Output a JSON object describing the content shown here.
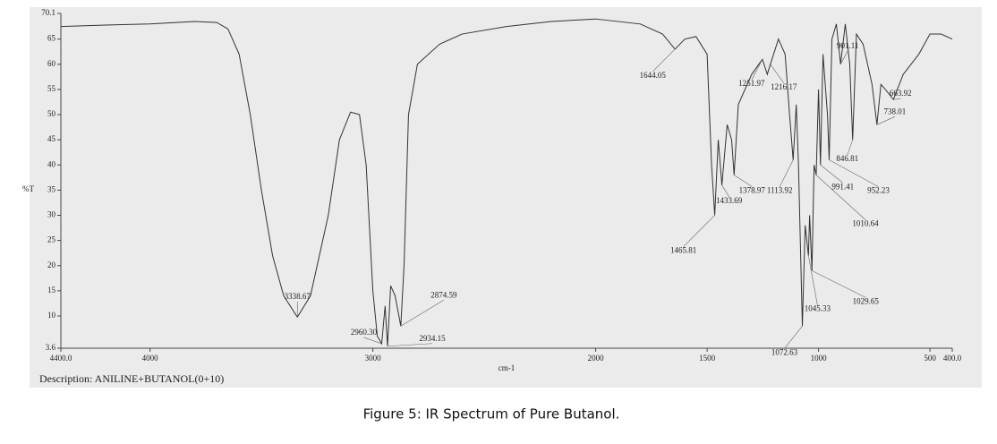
{
  "chart_data": {
    "type": "line",
    "y_label": "%T",
    "x_label": "cm-1",
    "description": "Description: ANILINE+BUTANOL(0+10)",
    "caption": "Figure 5: IR Spectrum of Pure Butanol.",
    "xlim": [
      4400,
      400
    ],
    "ylim": [
      3.6,
      70.1
    ],
    "xticks": [
      {
        "value": 4400,
        "label": "4400.0"
      },
      4000,
      3000,
      2000,
      1500,
      1000,
      500,
      {
        "value": 400,
        "label": "400.0"
      }
    ],
    "yticks": [
      3.6,
      10,
      15,
      20,
      25,
      30,
      35,
      40,
      45,
      50,
      55,
      60,
      65,
      70.1
    ],
    "x": [
      4400,
      4200,
      4000,
      3800,
      3700,
      3650,
      3600,
      3550,
      3500,
      3450,
      3400,
      3338.67,
      3280,
      3200,
      3150,
      3100,
      3060,
      3030,
      3000,
      2980,
      2960.3,
      2945,
      2934.15,
      2920,
      2900,
      2874.59,
      2860,
      2840,
      2800,
      2700,
      2600,
      2400,
      2200,
      2000,
      1800,
      1700,
      1644.05,
      1600,
      1550,
      1500,
      1480,
      1465.81,
      1450,
      1433.69,
      1410,
      1390,
      1378.97,
      1360,
      1300,
      1251.97,
      1230,
      1216.17,
      1180,
      1150,
      1130,
      1113.92,
      1100,
      1090,
      1072.63,
      1060,
      1045.33,
      1040,
      1029.65,
      1020,
      1010.64,
      1000,
      991.41,
      980,
      960,
      952.23,
      940,
      920,
      901.11,
      880,
      860,
      846.81,
      830,
      800,
      760,
      738.01,
      720,
      700,
      663.92,
      620,
      550,
      500,
      450,
      400
    ],
    "series": [
      {
        "color": "#333333",
        "values": [
          67.5,
          67.8,
          68,
          68.5,
          68.3,
          67,
          62,
          50,
          35,
          22,
          14,
          9.8,
          14,
          30,
          45,
          50.5,
          50,
          40,
          15,
          6,
          4.5,
          12,
          4,
          16,
          14,
          8,
          20,
          50,
          60,
          64,
          66,
          67.5,
          68.5,
          69,
          68,
          66,
          63,
          65,
          65.5,
          62,
          40,
          30,
          45,
          36,
          48,
          45,
          38,
          52,
          58,
          61,
          58,
          60,
          65,
          62,
          50,
          41,
          52,
          40,
          8,
          28,
          22,
          30,
          19,
          40,
          38,
          55,
          40,
          62,
          50,
          41,
          65,
          68,
          60,
          68,
          60,
          45,
          66,
          64,
          56,
          48,
          56,
          55,
          53,
          58,
          62,
          66,
          66,
          65
        ]
      }
    ],
    "peaks": [
      {
        "wavenumber": 3338.67,
        "t": 9.8
      },
      {
        "wavenumber": {
          "value": 2960.3,
          "label": "2960.30"
        },
        "t": 4.5
      },
      {
        "wavenumber": 2874.59,
        "t": 8
      },
      {
        "wavenumber": 2934.15,
        "t": 4
      },
      {
        "wavenumber": 1644.05,
        "t": 63
      },
      {
        "wavenumber": 1465.81,
        "t": 30
      },
      {
        "wavenumber": 1433.69,
        "t": 36
      },
      {
        "wavenumber": 1378.97,
        "t": 38
      },
      {
        "wavenumber": 1251.97,
        "t": 61
      },
      {
        "wavenumber": 1216.17,
        "t": 60
      },
      {
        "wavenumber": 1113.92,
        "t": 41
      },
      {
        "wavenumber": 1072.63,
        "t": 8
      },
      {
        "wavenumber": 1045.33,
        "t": 22
      },
      {
        "wavenumber": 1029.65,
        "t": 19
      },
      {
        "wavenumber": 1010.64,
        "t": 38
      },
      {
        "wavenumber": 991.41,
        "t": 40
      },
      {
        "wavenumber": 952.23,
        "t": 41
      },
      {
        "wavenumber": 901.11,
        "t": 60
      },
      {
        "wavenumber": 846.81,
        "t": 45
      },
      {
        "wavenumber": 738.01,
        "t": 48
      },
      {
        "wavenumber": 663.92,
        "t": 53
      }
    ]
  }
}
